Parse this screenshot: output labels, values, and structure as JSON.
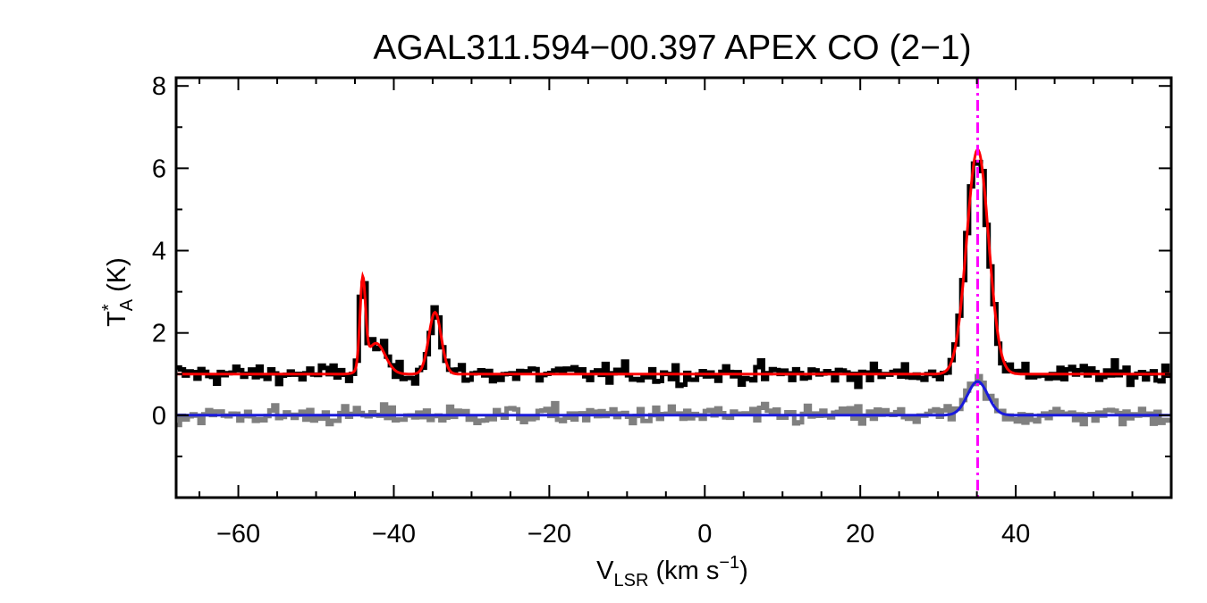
{
  "chart_data": {
    "type": "line",
    "title": "AGAL311.594−00.397  APEX CO (2−1)",
    "xlabel": {
      "main": "V",
      "sub": "LSR",
      "rest": " (km s",
      "sup": "−1",
      "close": ")"
    },
    "ylabel": {
      "main": "T",
      "sup": "*",
      "sub": "A",
      "rest": " (K)"
    },
    "xlim": [
      -68,
      60
    ],
    "ylim": [
      -2,
      8.2
    ],
    "xticks": [
      -60,
      -40,
      -20,
      0,
      20,
      40
    ],
    "xtick_labels": [
      "−60",
      "−40",
      "−20",
      "0",
      "20",
      "40"
    ],
    "yticks": [
      0,
      2,
      4,
      6,
      8
    ],
    "ytick_labels": [
      "0",
      "2",
      "4",
      "6",
      "8"
    ],
    "y_minor_ticks": [
      -1,
      1,
      3,
      5,
      7
    ],
    "x_minor_step": 5,
    "grid": false,
    "legend": "none",
    "v_marker": 35.1,
    "series": [
      {
        "role": "spectrum-offset",
        "style": "histogram",
        "color": "#000000",
        "baseline": 1.0,
        "components": [
          {
            "amp": 2.2,
            "center": -44.0,
            "width": 0.35
          },
          {
            "amp": 0.75,
            "center": -42.3,
            "width": 1.2
          },
          {
            "amp": 1.55,
            "center": -34.7,
            "width": 0.8
          },
          {
            "amp": 5.4,
            "center": 35.1,
            "width": 1.4
          }
        ],
        "noise": 0.17
      },
      {
        "role": "fit-offset",
        "style": "line",
        "color": "#ff0000",
        "baseline": 1.0,
        "components": [
          {
            "amp": 2.1,
            "center": -44.0,
            "width": 0.35
          },
          {
            "amp": 0.75,
            "center": -42.3,
            "width": 1.2
          },
          {
            "amp": 1.5,
            "center": -34.7,
            "width": 0.8
          },
          {
            "amp": 5.45,
            "center": 35.1,
            "width": 1.4
          }
        ]
      },
      {
        "role": "spectrum-lower",
        "style": "histogram",
        "color": "#808080",
        "baseline": 0.0,
        "components": [
          {
            "amp": 0.8,
            "center": 35.1,
            "width": 1.3
          }
        ],
        "noise": 0.16
      },
      {
        "role": "fit-lower",
        "style": "line",
        "color": "#1a1adc",
        "baseline": 0.0,
        "components": [
          {
            "amp": 0.82,
            "center": 35.1,
            "width": 1.3
          }
        ]
      }
    ],
    "marker_color": "#ff00ff"
  }
}
